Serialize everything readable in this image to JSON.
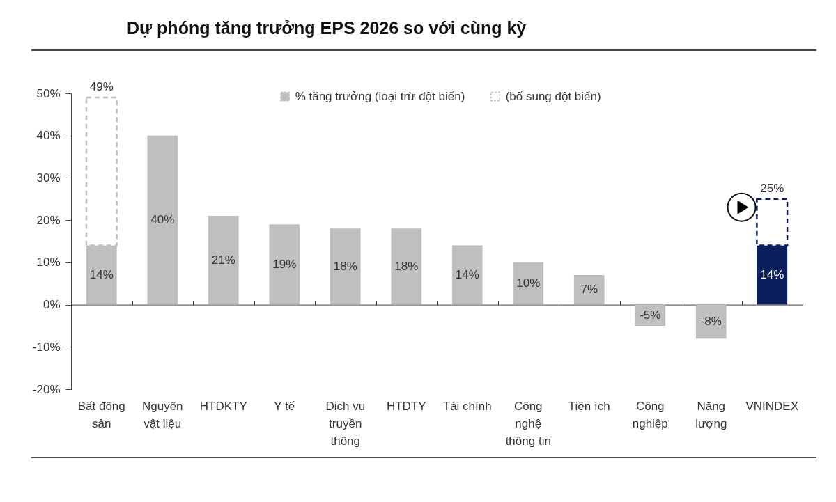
{
  "chart_data": {
    "type": "bar",
    "title": "Dự phóng tăng trưởng EPS 2026 so với cùng kỳ",
    "categories": [
      "Bất động sản",
      "Nguyên vật liệu",
      "HTDKTY",
      "Y tế",
      "Dịch vụ truyền thông",
      "HTDTY",
      "Tài chính",
      "Công nghệ thông tin",
      "Tiện ích",
      "Công nghiệp",
      "Năng lượng",
      "VNINDEX"
    ],
    "series": [
      {
        "name": "% tăng trưởng (loại trừ đột biến)",
        "color": "#bfbfbf",
        "colors": [
          "#bfbfbf",
          "#bfbfbf",
          "#bfbfbf",
          "#bfbfbf",
          "#bfbfbf",
          "#bfbfbf",
          "#bfbfbf",
          "#bfbfbf",
          "#bfbfbf",
          "#bfbfbf",
          "#bfbfbf",
          "#0b1f5e"
        ],
        "values": [
          14,
          40,
          21,
          19,
          18,
          18,
          14,
          10,
          7,
          -5,
          -8,
          14
        ],
        "value_labels": [
          "14%",
          "40%",
          "21%",
          "19%",
          "18%",
          "18%",
          "14%",
          "10%",
          "7%",
          "-5%",
          "-8%",
          "14%"
        ]
      },
      {
        "name": "(bổ sung đột biến)",
        "color": "#bfbfbf",
        "colors": [
          "#bfbfbf",
          null,
          null,
          null,
          null,
          null,
          null,
          null,
          null,
          null,
          null,
          "#0b1f5e"
        ],
        "line_style": "dashed",
        "values": [
          35,
          null,
          null,
          null,
          null,
          null,
          null,
          null,
          null,
          null,
          null,
          11
        ]
      }
    ],
    "stacked": true,
    "totals": [
      "49%",
      null,
      null,
      null,
      null,
      null,
      null,
      null,
      null,
      null,
      null,
      "25%"
    ],
    "ylim": [
      -20,
      50
    ],
    "yticks": [
      {
        "value": -20,
        "label": "-20%"
      },
      {
        "value": -10,
        "label": "-10%"
      },
      {
        "value": 0,
        "label": "0%"
      },
      {
        "value": 10,
        "label": "10%"
      },
      {
        "value": 20,
        "label": "20%"
      },
      {
        "value": 30,
        "label": "30%"
      },
      {
        "value": 40,
        "label": "40%"
      },
      {
        "value": 50,
        "label": "50%"
      }
    ],
    "legend": "top"
  }
}
